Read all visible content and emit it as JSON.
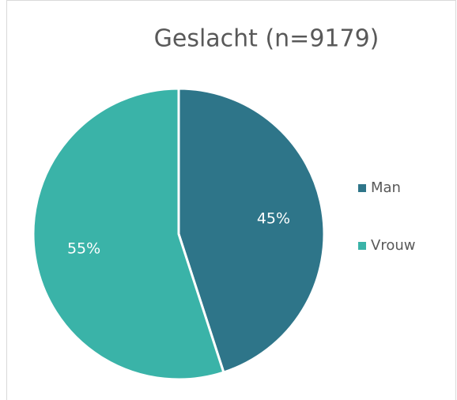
{
  "chart_data": {
    "type": "pie",
    "title": "Geslacht (n=9179)",
    "categories": [
      "Man",
      "Vrouw"
    ],
    "values": [
      45,
      55
    ],
    "value_labels": [
      "45%",
      "55%"
    ],
    "colors": [
      "#2e7589",
      "#3ab3a8"
    ],
    "legend": "right"
  }
}
